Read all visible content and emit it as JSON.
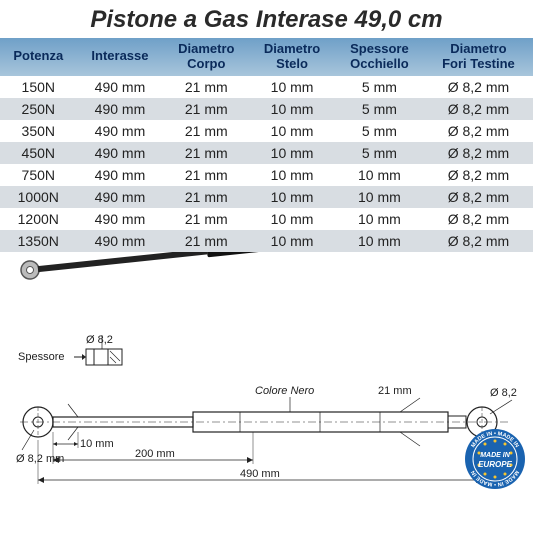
{
  "title": "Pistone a Gas Interase 49,0 cm",
  "columns": [
    "Potenza",
    "Interasse",
    "Diametro Corpo",
    "Diametro Stelo",
    "Spessore Occhiello",
    "Diametro Fori Testine"
  ],
  "columns_wrapped": [
    [
      "Potenza"
    ],
    [
      "Interasse"
    ],
    [
      "Diametro",
      "Corpo"
    ],
    [
      "Diametro",
      "Stelo"
    ],
    [
      "Spessore",
      "Occhiello"
    ],
    [
      "Diametro",
      "Fori Testine"
    ]
  ],
  "rows": [
    [
      "150N",
      "490 mm",
      "21 mm",
      "10 mm",
      "5 mm",
      "Ø 8,2 mm"
    ],
    [
      "250N",
      "490 mm",
      "21 mm",
      "10 mm",
      "5 mm",
      "Ø 8,2 mm"
    ],
    [
      "350N",
      "490 mm",
      "21 mm",
      "10 mm",
      "5 mm",
      "Ø 8,2 mm"
    ],
    [
      "450N",
      "490 mm",
      "21 mm",
      "10 mm",
      "5 mm",
      "Ø 8,2 mm"
    ],
    [
      "750N",
      "490 mm",
      "21 mm",
      "10 mm",
      "10 mm",
      "Ø 8,2 mm"
    ],
    [
      "1000N",
      "490 mm",
      "21 mm",
      "10 mm",
      "10 mm",
      "Ø 8,2 mm"
    ],
    [
      "1200N",
      "490 mm",
      "21 mm",
      "10 mm",
      "10 mm",
      "Ø 8,2 mm"
    ],
    [
      "1350N",
      "490 mm",
      "21 mm",
      "10 mm",
      "10 mm",
      "Ø 8,2 mm"
    ]
  ],
  "diagram": {
    "photo_label": "",
    "spessore_label": "Spessore",
    "colore_label": "Colore Nero",
    "d1": "Ø 8,2",
    "d2": "Ø 8,2 mm",
    "d3": "Ø 8,2",
    "len10": "10 mm",
    "len21": "21 mm",
    "len200": "200 mm",
    "len490": "490 mm"
  },
  "badge": {
    "line1": "MADE IN",
    "line2": "EUROPE"
  },
  "colors": {
    "header_grad_top": "#6fa0c8",
    "header_grad_bot": "#a8c5db",
    "header_text": "#0a2a5a",
    "row_alt": "#d8dde2",
    "piston_black": "#111",
    "piston_grey": "#888",
    "line": "#222",
    "badge_blue": "#1a63b0",
    "badge_gold": "#f4c430"
  }
}
